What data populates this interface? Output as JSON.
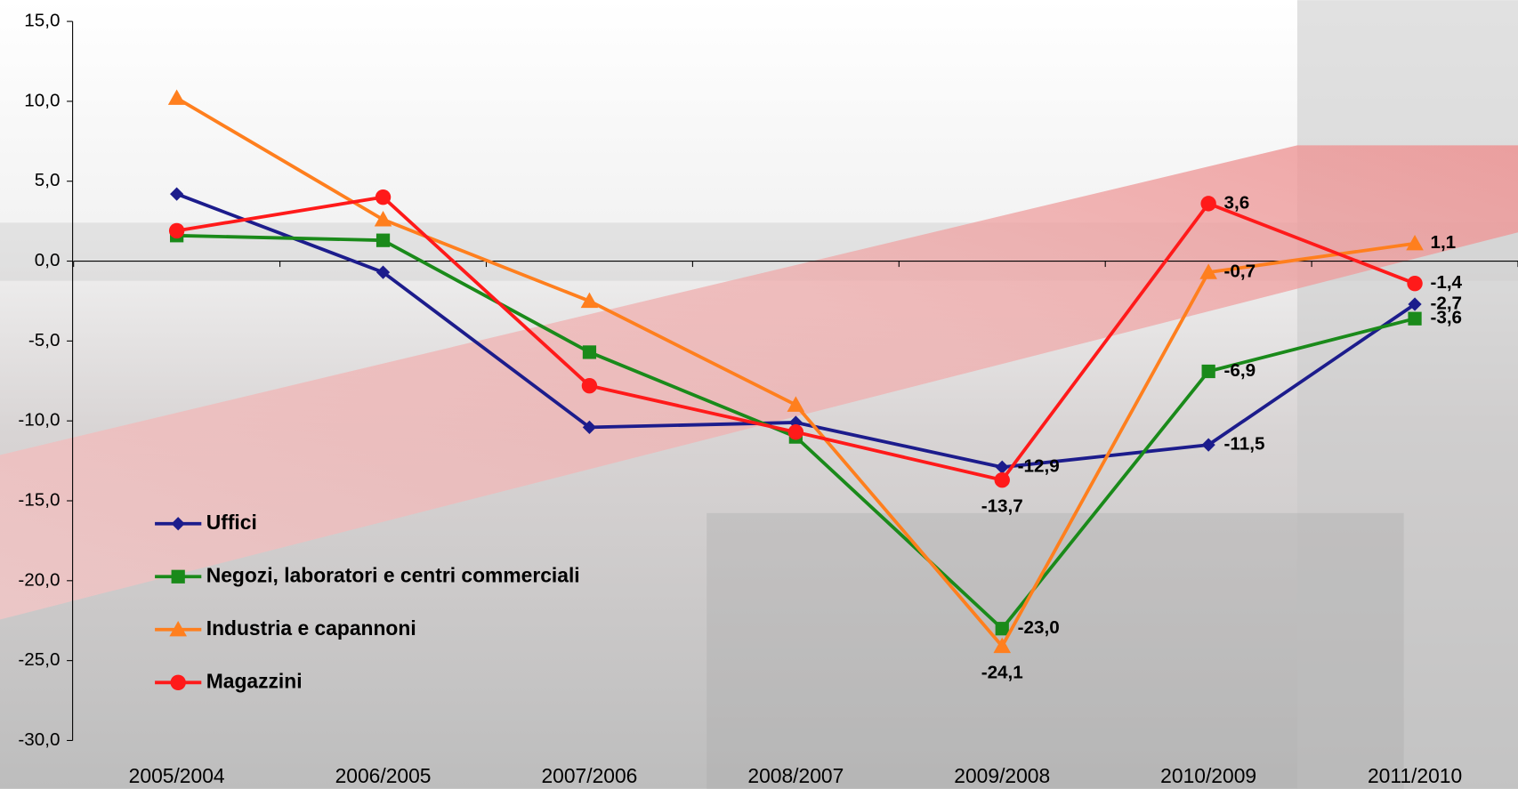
{
  "chart_data": {
    "type": "line",
    "categories": [
      "2005/2004",
      "2006/2005",
      "2007/2006",
      "2008/2007",
      "2009/2008",
      "2010/2009",
      "2011/2010"
    ],
    "series": [
      {
        "name": "Uffici",
        "color": "#1c1c8c",
        "marker": "diamond",
        "values": [
          4.2,
          -0.7,
          -10.4,
          -10.1,
          -12.9,
          -11.5,
          -2.7
        ],
        "value_labels": [
          null,
          null,
          null,
          null,
          "-12,9",
          "-11,5",
          "-2,7"
        ]
      },
      {
        "name": "Negozi, laboratori e centri commerciali",
        "color": "#1a8a1a",
        "marker": "square",
        "values": [
          1.6,
          1.3,
          -5.7,
          -11.0,
          -23.0,
          -6.9,
          -3.6
        ],
        "value_labels": [
          null,
          null,
          null,
          null,
          "-23,0",
          "-6,9",
          "-3,6"
        ]
      },
      {
        "name": "Industria e capannoni",
        "color": "#ff7f1e",
        "marker": "triangle",
        "values": [
          10.2,
          2.6,
          -2.5,
          -9.0,
          -24.1,
          -0.7,
          1.1
        ],
        "value_labels": [
          null,
          null,
          null,
          null,
          "-24,1",
          "-0,7",
          "1,1"
        ]
      },
      {
        "name": "Magazzini",
        "color": "#ff1a1a",
        "marker": "circle",
        "values": [
          1.9,
          4.0,
          -7.8,
          -10.7,
          -13.7,
          3.6,
          -1.4
        ],
        "value_labels": [
          null,
          null,
          null,
          null,
          "-13,7",
          "3,6",
          "-1,4"
        ]
      }
    ],
    "ylim": [
      -30,
      15
    ],
    "yticks": [
      {
        "value": -30,
        "label": "-30,0"
      },
      {
        "value": -25,
        "label": "-25,0"
      },
      {
        "value": -20,
        "label": "-20,0"
      },
      {
        "value": -15,
        "label": "-15,0"
      },
      {
        "value": -10,
        "label": "-10,0"
      },
      {
        "value": -5,
        "label": "-5,0"
      },
      {
        "value": 0,
        "label": "0,0"
      },
      {
        "value": 5,
        "label": "5,0"
      },
      {
        "value": 10,
        "label": "10,0"
      },
      {
        "value": 15,
        "label": "15,0"
      }
    ],
    "legend": "lower left"
  }
}
